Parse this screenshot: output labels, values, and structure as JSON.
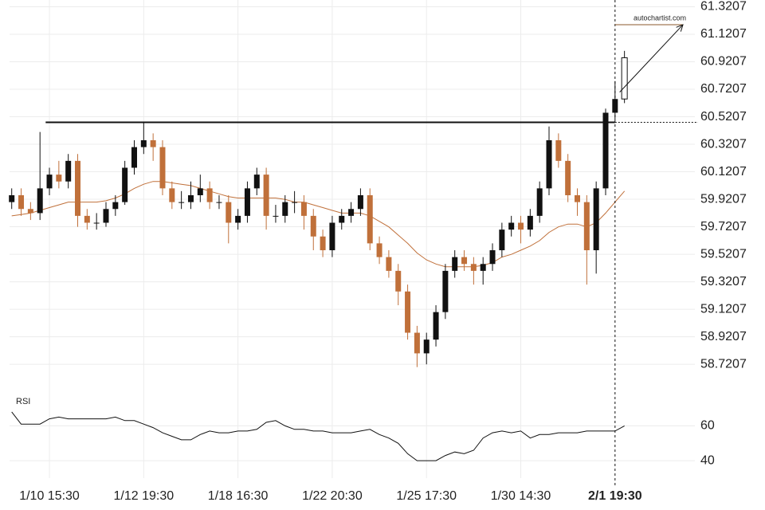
{
  "chart_data": {
    "type": "candlestick",
    "categories": [
      null,
      null,
      null,
      null,
      "1/10 15:30",
      null,
      null,
      null,
      null,
      null,
      null,
      null,
      null,
      null,
      "1/12 19:30",
      null,
      null,
      null,
      null,
      null,
      null,
      null,
      null,
      null,
      "1/18 16:30",
      null,
      null,
      null,
      null,
      null,
      null,
      null,
      null,
      null,
      "1/22 20:30",
      null,
      null,
      null,
      null,
      null,
      null,
      null,
      null,
      null,
      "1/25 17:30",
      null,
      null,
      null,
      null,
      null,
      null,
      null,
      null,
      null,
      "1/30 14:30",
      null,
      null,
      null,
      null,
      null,
      null,
      null,
      null,
      null,
      "2/1 19:30",
      null
    ],
    "open": [
      59.9,
      59.95,
      59.85,
      59.82,
      60.0,
      60.1,
      60.05,
      60.2,
      59.8,
      59.75,
      59.75,
      59.85,
      59.9,
      60.15,
      60.3,
      60.35,
      60.3,
      60.0,
      59.9,
      59.9,
      59.95,
      60.0,
      59.9,
      59.9,
      59.75,
      59.8,
      60.0,
      60.1,
      59.8,
      59.8,
      59.9,
      59.9,
      59.8,
      59.65,
      59.55,
      59.75,
      59.8,
      59.85,
      59.95,
      59.6,
      59.5,
      59.4,
      59.25,
      58.95,
      58.8,
      58.9,
      59.1,
      59.4,
      59.5,
      59.45,
      59.4,
      59.45,
      59.55,
      59.7,
      59.75,
      59.7,
      59.8,
      60.0,
      60.35,
      60.2,
      59.95,
      59.9,
      59.55,
      60.0,
      60.55,
      60.65
    ],
    "high": [
      60.0,
      60.0,
      59.9,
      60.41,
      60.15,
      60.2,
      60.25,
      60.25,
      59.85,
      59.82,
      59.9,
      59.95,
      60.2,
      60.35,
      60.48,
      60.4,
      60.35,
      60.05,
      59.98,
      60.05,
      60.1,
      60.05,
      59.95,
      59.95,
      59.85,
      60.05,
      60.15,
      60.15,
      59.88,
      59.95,
      59.98,
      59.95,
      59.85,
      59.7,
      59.8,
      59.85,
      59.9,
      60.0,
      60.0,
      59.65,
      59.55,
      59.45,
      59.3,
      59.0,
      58.95,
      59.15,
      59.45,
      59.55,
      59.55,
      59.5,
      59.5,
      59.6,
      59.75,
      59.8,
      59.8,
      59.85,
      60.05,
      60.45,
      60.4,
      60.25,
      60.0,
      59.95,
      60.05,
      60.58,
      60.78,
      61.0
    ],
    "low": [
      59.85,
      59.8,
      59.77,
      59.77,
      59.95,
      60.0,
      60.0,
      59.72,
      59.7,
      59.7,
      59.72,
      59.8,
      59.88,
      60.1,
      60.25,
      60.2,
      59.95,
      59.85,
      59.85,
      59.85,
      59.9,
      59.85,
      59.85,
      59.6,
      59.7,
      59.75,
      59.95,
      59.7,
      59.75,
      59.75,
      59.82,
      59.7,
      59.55,
      59.5,
      59.5,
      59.7,
      59.75,
      59.8,
      59.55,
      59.45,
      59.35,
      59.15,
      58.9,
      58.7,
      58.72,
      58.85,
      59.05,
      59.35,
      59.4,
      59.3,
      59.3,
      59.4,
      59.5,
      59.65,
      59.6,
      59.65,
      59.75,
      59.95,
      60.15,
      59.9,
      59.8,
      59.3,
      59.38,
      59.95,
      60.5,
      60.62
    ],
    "close": [
      59.95,
      59.85,
      59.82,
      60.0,
      60.1,
      60.05,
      60.2,
      59.8,
      59.75,
      59.75,
      59.85,
      59.9,
      60.15,
      60.3,
      60.35,
      60.3,
      60.0,
      59.9,
      59.9,
      59.95,
      60.0,
      59.9,
      59.9,
      59.75,
      59.8,
      60.0,
      60.1,
      59.8,
      59.8,
      59.9,
      59.9,
      59.8,
      59.65,
      59.55,
      59.75,
      59.8,
      59.85,
      59.95,
      59.6,
      59.5,
      59.4,
      59.25,
      58.95,
      58.8,
      58.9,
      59.1,
      59.4,
      59.5,
      59.45,
      59.4,
      59.45,
      59.55,
      59.7,
      59.75,
      59.7,
      59.8,
      60.0,
      60.35,
      60.2,
      59.95,
      59.9,
      59.55,
      60.0,
      60.55,
      60.65,
      60.95
    ],
    "up_color": "#111111",
    "down_color": "#c0703a",
    "ylim": [
      58.53,
      61.37
    ],
    "yticks": [
      58.7207,
      58.9207,
      59.1207,
      59.3207,
      59.5207,
      59.7207,
      59.9207,
      60.1207,
      60.3207,
      60.5207,
      60.7207,
      60.9207,
      61.1207,
      61.3207
    ],
    "grid": true,
    "ma": {
      "color": "#c0703a",
      "values": [
        59.8,
        59.81,
        59.82,
        59.84,
        59.86,
        59.88,
        59.9,
        59.9,
        59.9,
        59.9,
        59.91,
        59.93,
        59.96,
        60.0,
        60.03,
        60.05,
        60.05,
        60.04,
        60.03,
        60.02,
        60.0,
        59.98,
        59.96,
        59.94,
        59.93,
        59.93,
        59.93,
        59.93,
        59.93,
        59.92,
        59.9,
        59.9,
        59.88,
        59.86,
        59.84,
        59.82,
        59.82,
        59.82,
        59.8,
        59.76,
        59.72,
        59.66,
        59.6,
        59.53,
        59.48,
        59.45,
        59.43,
        59.43,
        59.43,
        59.43,
        59.44,
        59.46,
        59.5,
        59.52,
        59.55,
        59.58,
        59.62,
        59.68,
        59.72,
        59.74,
        59.74,
        59.72,
        59.75,
        59.82,
        59.9,
        59.98
      ]
    },
    "level": 60.48,
    "forecast": {
      "label": "autochartist.com",
      "from": 60.7,
      "to": 61.19,
      "color": "#8b5a2b"
    },
    "rsi": {
      "label": "RSI",
      "color": "#111111",
      "ylim": [
        30,
        78
      ],
      "yticks": [
        40,
        60
      ],
      "values": [
        68,
        61,
        61,
        61,
        64,
        65,
        64,
        64,
        64,
        64,
        64,
        65,
        63,
        63,
        61,
        59,
        56,
        54,
        52,
        52,
        55,
        57,
        56,
        56,
        57,
        57,
        58,
        62,
        63,
        60,
        58,
        58,
        57,
        57,
        56,
        56,
        56,
        57,
        58,
        55,
        53,
        50,
        44,
        40,
        40,
        40,
        43,
        45,
        44,
        46,
        53,
        56,
        57,
        56,
        57,
        53,
        55,
        55,
        56,
        56,
        56,
        57,
        57,
        57,
        57,
        60
      ]
    }
  }
}
